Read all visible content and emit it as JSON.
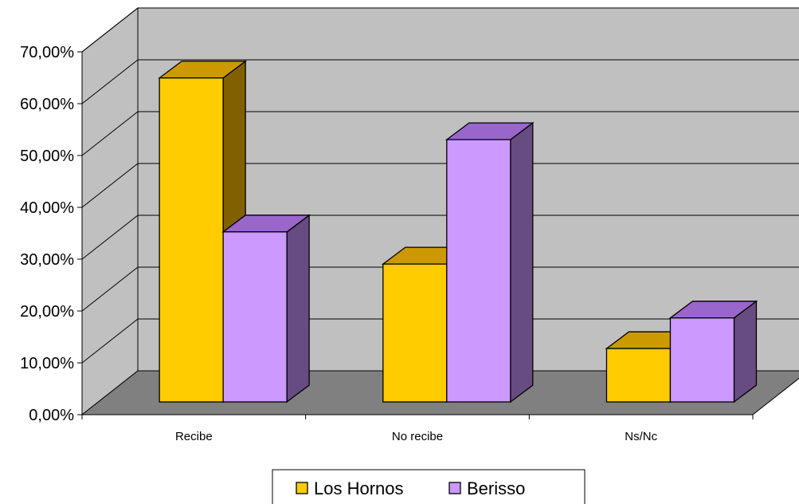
{
  "chart_data": {
    "type": "bar",
    "categories": [
      "Recibe",
      "No recibe",
      "Ns/Nc"
    ],
    "series": [
      {
        "name": "Los Hornos",
        "values": [
          62.5,
          26.6,
          10.3
        ],
        "color": "#ffcc00",
        "top_color": "#cc9900",
        "side_color": "#806000"
      },
      {
        "name": "Berisso",
        "values": [
          32.8,
          50.6,
          16.2
        ],
        "color": "#cc99ff",
        "top_color": "#9966cc",
        "side_color": "#664c80"
      }
    ],
    "y_tick_labels": [
      "0,00%",
      "10,00%",
      "20,00%",
      "30,00%",
      "40,00%",
      "50,00%",
      "60,00%",
      "70,00%"
    ],
    "ylim": [
      0,
      70
    ],
    "y_step": 10,
    "grid": true,
    "legend_position": "bottom",
    "wall_color": "#c0c0c0",
    "floor_color": "#808080",
    "title": "",
    "xlabel": "",
    "ylabel": ""
  }
}
